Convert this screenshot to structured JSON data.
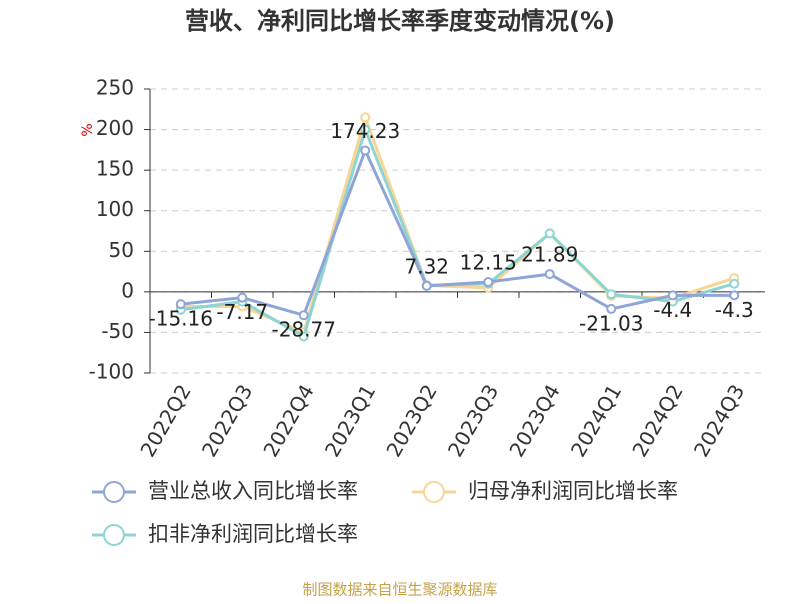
{
  "chart_data": {
    "type": "line",
    "title": "营收、净利同比增长率季度变动情况(%)",
    "y_label": "%",
    "categories": [
      "2022Q2",
      "2022Q3",
      "2022Q4",
      "2023Q1",
      "2023Q2",
      "2023Q3",
      "2023Q4",
      "2024Q1",
      "2024Q2",
      "2024Q3"
    ],
    "series": [
      {
        "name": "营业总收入同比增长率",
        "color": "#8fa5d8",
        "values": [
          -15.16,
          -7.17,
          -28.77,
          174.23,
          7.32,
          12.15,
          21.89,
          -21.03,
          -4.4,
          -4.3
        ],
        "labels": true
      },
      {
        "name": "归母净利润同比增长率",
        "color": "#f8d595",
        "values": [
          -18,
          -18,
          -50,
          215,
          8,
          5,
          72,
          -5,
          -8,
          17
        ]
      },
      {
        "name": "扣非净利润同比增长率",
        "color": "#8dd5d5",
        "values": [
          -22,
          -12,
          -55,
          200,
          8,
          10,
          72,
          -3,
          -12,
          10
        ]
      }
    ],
    "ylim": [
      -100,
      250
    ],
    "yticks": [
      -100,
      -50,
      0,
      50,
      100,
      150,
      200,
      250
    ],
    "grid": true,
    "source": "制图数据来自恒生聚源数据库"
  }
}
